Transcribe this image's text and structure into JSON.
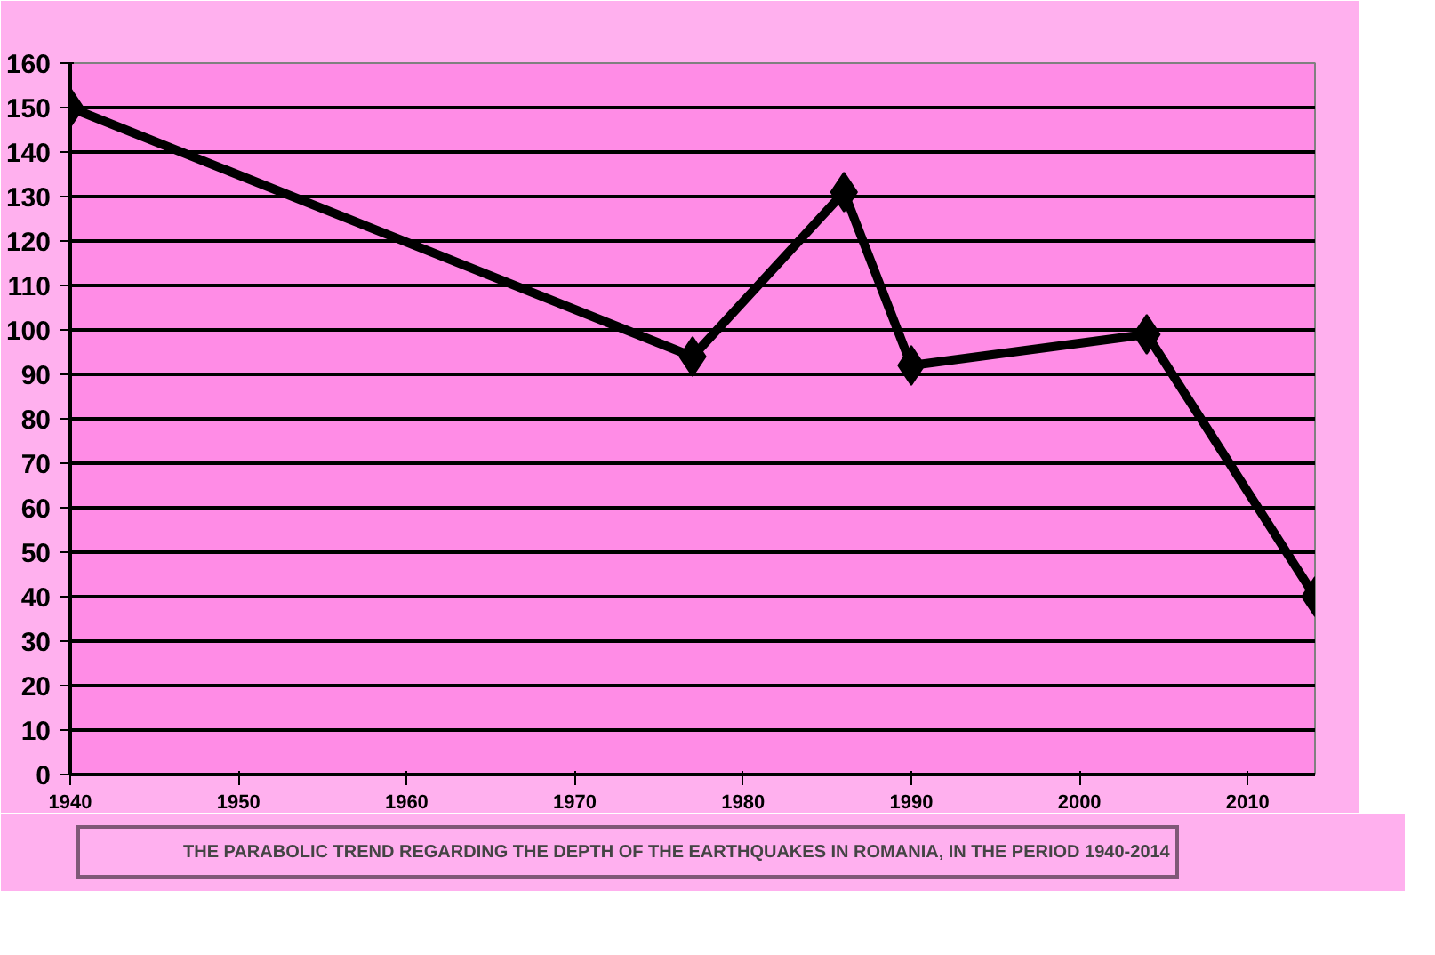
{
  "chart_data": {
    "type": "line",
    "x": [
      1940,
      1977,
      1986,
      1990,
      2004,
      2014
    ],
    "series": [
      {
        "name": "THE PARABOLIC TREND REGARDING THE DEPTH OF THE EARTHQUAKES IN ROMANIA, IN THE PERIOD 1940-2014",
        "color": "#000000",
        "values": [
          150,
          94,
          131,
          92,
          99,
          40
        ]
      }
    ],
    "xlim": [
      1940,
      2014
    ],
    "xticks": [
      1940,
      1950,
      1960,
      1970,
      1980,
      1990,
      2000,
      2010
    ],
    "ylim": [
      0,
      160
    ],
    "yticks": [
      0,
      10,
      20,
      30,
      40,
      50,
      60,
      70,
      80,
      90,
      100,
      110,
      120,
      130,
      140,
      150,
      160
    ],
    "grid": "y",
    "legend": "bottom",
    "marker": "diamond",
    "line_style": "solid"
  }
}
